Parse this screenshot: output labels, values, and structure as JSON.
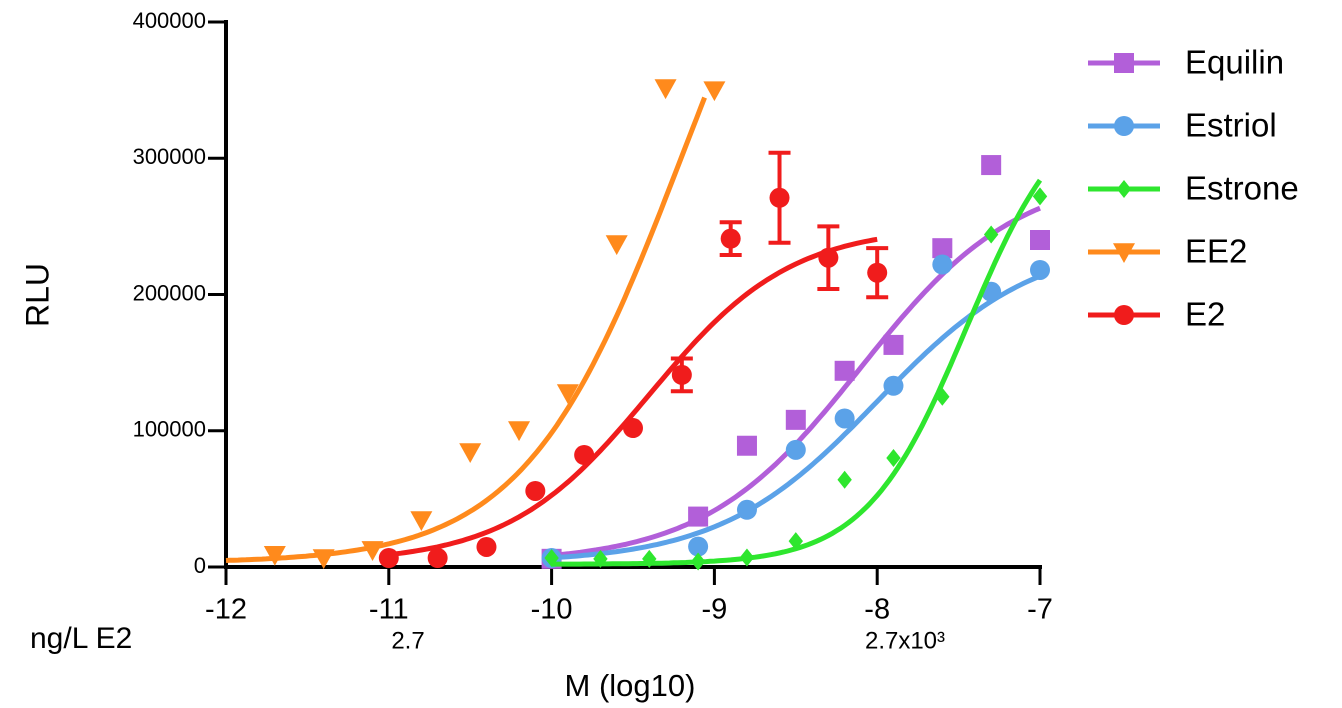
{
  "chart_data": {
    "type": "scatter",
    "y_label": "RLU",
    "x_label": "M (log10)",
    "annotations": [
      "ng/L  E2",
      "2.7",
      "2.7x10³"
    ],
    "xlim": [
      -12,
      -7
    ],
    "xticks": [
      -12,
      -11,
      -10,
      -9,
      -8,
      -7
    ],
    "ylim": [
      0,
      400000
    ],
    "yticks": [
      0,
      100000,
      200000,
      300000,
      400000
    ],
    "legend": "top-right",
    "series": [
      {
        "name": "Equilin",
        "color": "#b25fd9",
        "marker": "square",
        "x": [
          -10,
          -9.1,
          -8.8,
          -8.5,
          -8.2,
          -7.9,
          -7.6,
          -7.3,
          -7.0
        ],
        "values": [
          6000,
          37000,
          89000,
          108000,
          144000,
          163000,
          234000,
          295000,
          240000
        ],
        "curve": {
          "bottom": 3000,
          "top": 290000,
          "log_ec50": -8.1,
          "hill": 0.9,
          "x_range": [
            -10,
            -7
          ]
        }
      },
      {
        "name": "Estriol",
        "color": "#5ba2e8",
        "marker": "circle",
        "x": [
          -10,
          -9.1,
          -8.8,
          -8.5,
          -8.2,
          -7.9,
          -7.6,
          -7.3,
          -7.0
        ],
        "values": [
          6600,
          15000,
          42000,
          86000,
          109000,
          133000,
          222000,
          202000,
          218000
        ],
        "curve": {
          "bottom": 3000,
          "top": 240000,
          "log_ec50": -8.0,
          "hill": 0.9,
          "x_range": [
            -10,
            -7
          ]
        }
      },
      {
        "name": "Estrone",
        "color": "#2ee62e",
        "marker": "diamond",
        "x": [
          -10,
          -9.7,
          -9.4,
          -9.1,
          -8.8,
          -8.5,
          -8.2,
          -7.9,
          -7.6,
          -7.3,
          -7.0
        ],
        "values": [
          6600,
          6000,
          6000,
          4000,
          7000,
          19000,
          64000,
          80000,
          125000,
          244000,
          272000
        ],
        "curve": {
          "bottom": 2000,
          "top": 350000,
          "log_ec50": -7.45,
          "hill": 1.4,
          "x_range": [
            -10,
            -7
          ]
        }
      },
      {
        "name": "EE2",
        "color": "#ff8a1c",
        "marker": "triangle-down",
        "x": [
          -11.7,
          -11.4,
          -11.1,
          -10.8,
          -10.5,
          -10.2,
          -9.9,
          -9.6,
          -9.3,
          -9.0
        ],
        "values": [
          9000,
          6600,
          12500,
          34500,
          84400,
          100500,
          127700,
          237000,
          351500,
          350000
        ],
        "curve": {
          "bottom": 3000,
          "top": 600000,
          "log_ec50": -9.2,
          "hill": 0.9,
          "x_range": [
            -12,
            -9.06
          ]
        }
      },
      {
        "name": "E2",
        "color": "#f01c1c",
        "marker": "circle",
        "x": [
          -11.0,
          -10.7,
          -10.4,
          -10.1,
          -9.8,
          -9.5,
          -9.2,
          -8.9,
          -8.6,
          -8.3,
          -8.0
        ],
        "values": [
          6600,
          6600,
          14700,
          55800,
          82200,
          102000,
          141000,
          241000,
          271000,
          227000,
          216000
        ],
        "errors": [
          null,
          null,
          null,
          null,
          null,
          null,
          12000,
          12000,
          33000,
          23000,
          18000
        ],
        "curve": {
          "bottom": 3000,
          "top": 250000,
          "log_ec50": -9.4,
          "hill": 1.0,
          "x_range": [
            -11,
            -8
          ]
        }
      }
    ]
  }
}
